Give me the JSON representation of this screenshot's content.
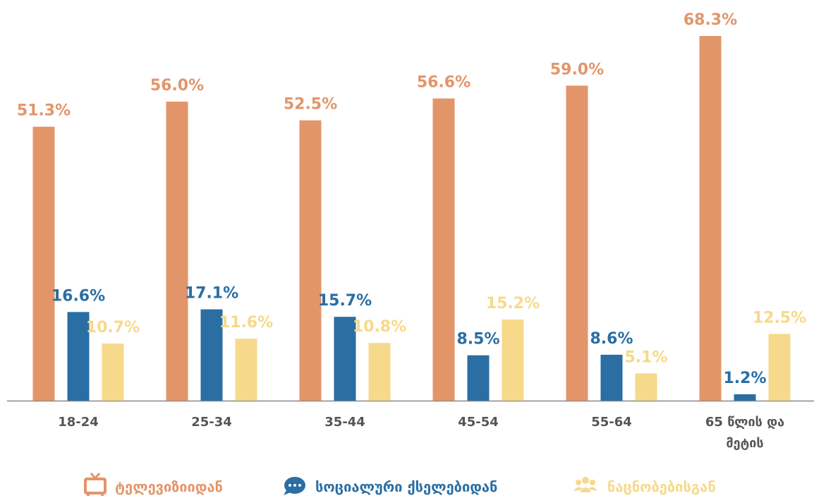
{
  "chart_data": {
    "type": "bar",
    "categories": [
      "18-24",
      "25-34",
      "35-44",
      "45-54",
      "55-64",
      "65 წლის და მეტის"
    ],
    "series": [
      {
        "name": "ტელევიზიიდან",
        "color": "#e3956a",
        "values": [
          51.3,
          56.0,
          52.5,
          56.6,
          59.0,
          68.3
        ],
        "value_labels": [
          "51.3%",
          "56.0%",
          "52.5%",
          "56.6%",
          "59.0%",
          "68.3%"
        ]
      },
      {
        "name": "სოციალური ქსელებიდან",
        "color": "#2a6ea3",
        "values": [
          16.6,
          17.1,
          15.7,
          8.5,
          8.6,
          1.2
        ],
        "value_labels": [
          "16.6%",
          "17.1%",
          "15.7%",
          "8.5%",
          "8.6%",
          "1.2%"
        ]
      },
      {
        "name": "ნაცნობებისგან",
        "color": "#f6d98a",
        "values": [
          10.7,
          11.6,
          10.8,
          15.2,
          5.1,
          12.5
        ],
        "value_labels": [
          "10.7%",
          "11.6%",
          "10.8%",
          "15.2%",
          "5.1%",
          "12.5%"
        ]
      }
    ],
    "legend": "bottom"
  }
}
